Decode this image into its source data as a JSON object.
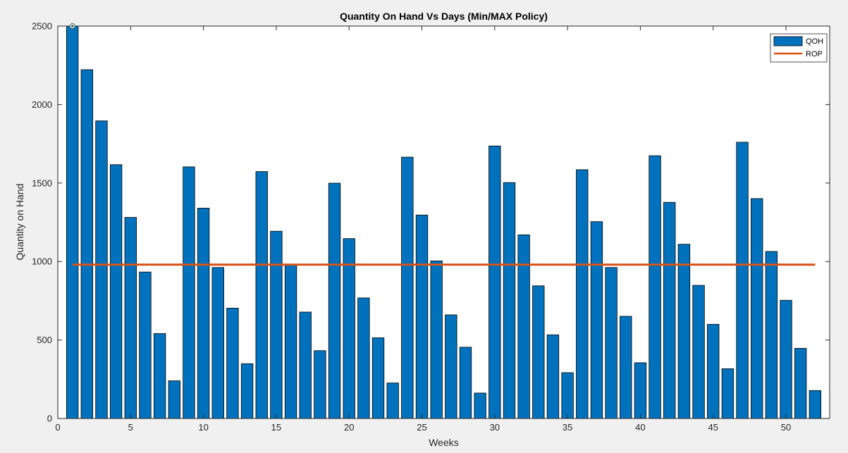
{
  "chart_data": {
    "type": "bar",
    "title": "Quantity On Hand Vs Days (Min/MAX Policy)",
    "xlabel": "Weeks",
    "ylabel": "Quantity on Hand",
    "xlim": [
      0,
      53
    ],
    "ylim": [
      0,
      2500
    ],
    "xticks": [
      0,
      5,
      10,
      15,
      20,
      25,
      30,
      35,
      40,
      45,
      50
    ],
    "yticks": [
      0,
      500,
      1000,
      1500,
      2000,
      2500
    ],
    "x": [
      1,
      2,
      3,
      4,
      5,
      6,
      7,
      8,
      9,
      10,
      11,
      12,
      13,
      14,
      15,
      16,
      17,
      18,
      19,
      20,
      21,
      22,
      23,
      24,
      25,
      26,
      27,
      28,
      29,
      30,
      31,
      32,
      33,
      34,
      35,
      36,
      37,
      38,
      39,
      40,
      41,
      42,
      43,
      44,
      45,
      46,
      47,
      48,
      49,
      50,
      51,
      52
    ],
    "series": [
      {
        "name": "QOH",
        "type": "bar",
        "color": "#0072BD",
        "values": [
          2500,
          2222,
          1896,
          1617,
          1281,
          933,
          541,
          240,
          1603,
          1340,
          962,
          703,
          349,
          1573,
          1193,
          980,
          678,
          432,
          1499,
          1146,
          768,
          514,
          226,
          1665,
          1296,
          1004,
          660,
          454,
          162,
          1736,
          1503,
          1170,
          845,
          533,
          292,
          1585,
          1254,
          962,
          651,
          355,
          1674,
          1377,
          1110,
          848,
          600,
          317,
          1760,
          1401,
          1064,
          753,
          447,
          178
        ]
      },
      {
        "name": "ROP",
        "type": "line",
        "color": "#D95319",
        "values": [
          980,
          980
        ],
        "x": [
          1,
          52
        ]
      }
    ],
    "grid": false,
    "legend_position": "top-right",
    "marker": {
      "x": 1,
      "y": 2500
    }
  }
}
